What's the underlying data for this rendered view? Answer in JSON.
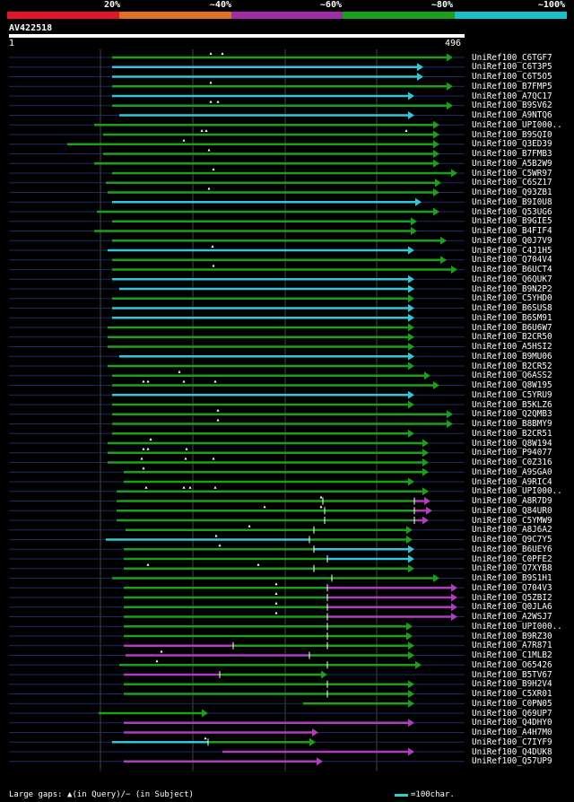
{
  "identity_scale": [
    {
      "label": "20%",
      "color": "#e0142a"
    },
    {
      "label": "~40%",
      "color": "#e07020"
    },
    {
      "label": "~60%",
      "color": "#a02ca8"
    },
    {
      "label": "~80%",
      "color": "#1aa01a"
    },
    {
      "label": "~100%",
      "color": "#18c0c8"
    }
  ],
  "colors": {
    "green": "#1aa01a",
    "cyan": "#30c8d8",
    "magenta": "#b03cc0",
    "gap": "#1c2a6a",
    "grid": "#444444"
  },
  "query": {
    "name": "AV422518",
    "start": "1",
    "end": "496",
    "length": 496
  },
  "footer": {
    "gaps": "Large gaps: ▲(in Query)/− (in Subject)",
    "legend": "=100char."
  },
  "hits": [
    {
      "name": "UniRef100_C6TGF7",
      "segs": [
        [
          125,
          505,
          "green"
        ]
      ],
      "marks": [
        235,
        248
      ]
    },
    {
      "name": "UniRef100_C6T3P5",
      "segs": [
        [
          125,
          472,
          "cyan"
        ]
      ],
      "marks": []
    },
    {
      "name": "UniRef100_C6T5O5",
      "segs": [
        [
          125,
          472,
          "cyan"
        ]
      ],
      "marks": []
    },
    {
      "name": "UniRef100_B7FMP5",
      "segs": [
        [
          125,
          505,
          "green"
        ]
      ],
      "marks": [
        235
      ]
    },
    {
      "name": "UniRef100_A7QC17",
      "segs": [
        [
          125,
          462,
          "cyan"
        ]
      ],
      "marks": []
    },
    {
      "name": "UniRef100_B9SV62",
      "segs": [
        [
          125,
          505,
          "green"
        ]
      ],
      "marks": [
        235,
        243
      ]
    },
    {
      "name": "UniRef100_A9NTQ6",
      "segs": [
        [
          133,
          462,
          "cyan"
        ]
      ],
      "marks": []
    },
    {
      "name": "UniRef100_UPI000..",
      "segs": [
        [
          105,
          490,
          "green"
        ]
      ],
      "marks": []
    },
    {
      "name": "UniRef100_B9SQI0",
      "segs": [
        [
          115,
          490,
          "green"
        ]
      ],
      "marks": [
        225,
        230,
        453
      ]
    },
    {
      "name": "UniRef100_Q3ED39",
      "segs": [
        [
          75,
          490,
          "green"
        ]
      ],
      "marks": [
        205
      ]
    },
    {
      "name": "UniRef100_B7FMB3",
      "segs": [
        [
          115,
          490,
          "green"
        ]
      ],
      "marks": [
        233
      ]
    },
    {
      "name": "UniRef100_A5B2W9",
      "segs": [
        [
          105,
          490,
          "green"
        ]
      ],
      "marks": []
    },
    {
      "name": "UniRef100_C5WR97",
      "segs": [
        [
          125,
          510,
          "green"
        ]
      ],
      "marks": [
        238
      ]
    },
    {
      "name": "UniRef100_C6SZ17",
      "segs": [
        [
          118,
          492,
          "green"
        ]
      ],
      "marks": []
    },
    {
      "name": "UniRef100_Q93ZB1",
      "segs": [
        [
          120,
          490,
          "green"
        ]
      ],
      "marks": [
        233
      ]
    },
    {
      "name": "UniRef100_B9I0U8",
      "segs": [
        [
          125,
          470,
          "cyan"
        ]
      ],
      "marks": []
    },
    {
      "name": "UniRef100_Q53UG6",
      "segs": [
        [
          108,
          490,
          "green"
        ]
      ],
      "marks": []
    },
    {
      "name": "UniRef100_B9GIE5",
      "segs": [
        [
          125,
          465,
          "green"
        ]
      ],
      "marks": []
    },
    {
      "name": "UniRef100_B4FIF4",
      "segs": [
        [
          105,
          465,
          "green"
        ]
      ],
      "marks": []
    },
    {
      "name": "UniRef100_Q0J7V9",
      "segs": [
        [
          125,
          498,
          "green"
        ]
      ],
      "marks": []
    },
    {
      "name": "UniRef100_C4J1H5",
      "segs": [
        [
          120,
          462,
          "cyan"
        ]
      ],
      "marks": [
        237
      ]
    },
    {
      "name": "UniRef100_Q704V4",
      "segs": [
        [
          125,
          498,
          "green"
        ]
      ],
      "marks": []
    },
    {
      "name": "UniRef100_B6UCT4",
      "segs": [
        [
          125,
          510,
          "green"
        ]
      ],
      "marks": [
        238
      ]
    },
    {
      "name": "UniRef100_Q6QUK7",
      "segs": [
        [
          125,
          462,
          "cyan"
        ]
      ],
      "marks": []
    },
    {
      "name": "UniRef100_B9N2P2",
      "segs": [
        [
          133,
          462,
          "cyan"
        ]
      ],
      "marks": []
    },
    {
      "name": "UniRef100_C5YHD0",
      "segs": [
        [
          125,
          462,
          "green"
        ]
      ],
      "marks": []
    },
    {
      "name": "UniRef100_B6SUS8",
      "segs": [
        [
          125,
          462,
          "cyan"
        ]
      ],
      "marks": []
    },
    {
      "name": "UniRef100_B6SM91",
      "segs": [
        [
          125,
          462,
          "cyan"
        ]
      ],
      "marks": []
    },
    {
      "name": "UniRef100_B6U6W7",
      "segs": [
        [
          120,
          462,
          "green"
        ]
      ],
      "marks": []
    },
    {
      "name": "UniRef100_B2CR50",
      "segs": [
        [
          120,
          462,
          "green"
        ]
      ],
      "marks": []
    },
    {
      "name": "UniRef100_A5HSI2",
      "segs": [
        [
          120,
          462,
          "green"
        ]
      ],
      "marks": []
    },
    {
      "name": "UniRef100_B9MU06",
      "segs": [
        [
          133,
          462,
          "cyan"
        ]
      ],
      "marks": []
    },
    {
      "name": "UniRef100_B2CR52",
      "segs": [
        [
          120,
          462,
          "green"
        ]
      ],
      "marks": []
    },
    {
      "name": "UniRef100_Q6ASS2",
      "segs": [
        [
          125,
          480,
          "green"
        ]
      ],
      "marks": [
        200
      ]
    },
    {
      "name": "UniRef100_Q8W195",
      "segs": [
        [
          125,
          490,
          "green"
        ]
      ],
      "marks": [
        160,
        165,
        205,
        240
      ]
    },
    {
      "name": "UniRef100_C5YRU9",
      "segs": [
        [
          125,
          462,
          "cyan"
        ]
      ],
      "marks": []
    },
    {
      "name": "UniRef100_B5KLZ6",
      "segs": [
        [
          125,
          462,
          "green"
        ]
      ],
      "marks": []
    },
    {
      "name": "UniRef100_Q2QMB3",
      "segs": [
        [
          125,
          505,
          "green"
        ]
      ],
      "marks": [
        243
      ]
    },
    {
      "name": "UniRef100_B8BMY9",
      "segs": [
        [
          125,
          505,
          "green"
        ]
      ],
      "marks": [
        243
      ]
    },
    {
      "name": "UniRef100_B2CR51",
      "segs": [
        [
          125,
          462,
          "green"
        ]
      ],
      "marks": []
    },
    {
      "name": "UniRef100_Q8W194",
      "segs": [
        [
          120,
          478,
          "green"
        ]
      ],
      "marks": [
        168
      ]
    },
    {
      "name": "UniRef100_P94077",
      "segs": [
        [
          120,
          478,
          "green"
        ]
      ],
      "marks": [
        160,
        165,
        208
      ]
    },
    {
      "name": "UniRef100_C0Z316",
      "segs": [
        [
          120,
          478,
          "green"
        ]
      ],
      "marks": [
        158,
        207,
        238
      ]
    },
    {
      "name": "UniRef100_A9SGA0",
      "segs": [
        [
          138,
          478,
          "green"
        ]
      ],
      "marks": [
        160
      ]
    },
    {
      "name": "UniRef100_A9RIC4",
      "segs": [
        [
          138,
          462,
          "green"
        ]
      ],
      "marks": []
    },
    {
      "name": "UniRef100_UPI000..",
      "segs": [
        [
          130,
          478,
          "green"
        ]
      ],
      "marks": [
        163,
        205,
        212,
        240
      ]
    },
    {
      "name": "UniRef100_A8R7D9",
      "segs": [
        [
          130,
          360,
          "green"
        ],
        [
          360,
          462,
          "green"
        ],
        [
          462,
          480,
          "magenta"
        ]
      ],
      "marks": [
        358
      ]
    },
    {
      "name": "UniRef100_Q84UR0",
      "segs": [
        [
          130,
          362,
          "green"
        ],
        [
          362,
          462,
          "green"
        ],
        [
          462,
          482,
          "magenta"
        ]
      ],
      "marks": [
        295,
        358
      ]
    },
    {
      "name": "UniRef100_C5YMW9",
      "segs": [
        [
          130,
          362,
          "green"
        ],
        [
          362,
          462,
          "green"
        ],
        [
          462,
          478,
          "magenta"
        ]
      ],
      "marks": []
    },
    {
      "name": "UniRef100_A8J6A2",
      "segs": [
        [
          140,
          350,
          "green"
        ],
        [
          350,
          460,
          "green"
        ]
      ],
      "marks": [
        278
      ]
    },
    {
      "name": "UniRef100_Q9C7Y5",
      "segs": [
        [
          118,
          345,
          "cyan"
        ],
        [
          345,
          460,
          "green"
        ]
      ],
      "marks": [
        241
      ]
    },
    {
      "name": "UniRef100_B6UEY6",
      "segs": [
        [
          138,
          350,
          "green"
        ],
        [
          350,
          462,
          "cyan"
        ]
      ],
      "marks": [
        245
      ]
    },
    {
      "name": "UniRef100_C0PFE2",
      "segs": [
        [
          138,
          365,
          "green"
        ],
        [
          365,
          462,
          "cyan"
        ]
      ],
      "marks": []
    },
    {
      "name": "UniRef100_Q7XYB8",
      "segs": [
        [
          138,
          350,
          "green"
        ],
        [
          350,
          462,
          "green"
        ]
      ],
      "marks": [
        165,
        288
      ]
    },
    {
      "name": "UniRef100_B9S1H1",
      "segs": [
        [
          125,
          370,
          "green"
        ],
        [
          370,
          490,
          "green"
        ]
      ],
      "marks": []
    },
    {
      "name": "UniRef100_Q704V3",
      "segs": [
        [
          138,
          365,
          "green"
        ],
        [
          365,
          510,
          "magenta"
        ]
      ],
      "marks": [
        308
      ]
    },
    {
      "name": "UniRef100_Q5ZBI2",
      "segs": [
        [
          138,
          365,
          "green"
        ],
        [
          365,
          510,
          "magenta"
        ]
      ],
      "marks": [
        308
      ]
    },
    {
      "name": "UniRef100_Q0JLA6",
      "segs": [
        [
          138,
          365,
          "green"
        ],
        [
          365,
          510,
          "magenta"
        ]
      ],
      "marks": [
        308
      ]
    },
    {
      "name": "UniRef100_A2WSJ7",
      "segs": [
        [
          138,
          365,
          "green"
        ],
        [
          365,
          510,
          "magenta"
        ]
      ],
      "marks": [
        308
      ]
    },
    {
      "name": "UniRef100_UPI000..",
      "segs": [
        [
          138,
          365,
          "green"
        ],
        [
          365,
          460,
          "green"
        ]
      ],
      "marks": []
    },
    {
      "name": "UniRef100_B9RZ30",
      "segs": [
        [
          138,
          365,
          "green"
        ],
        [
          365,
          460,
          "green"
        ]
      ],
      "marks": []
    },
    {
      "name": "UniRef100_A7R871",
      "segs": [
        [
          138,
          260,
          "magenta"
        ],
        [
          260,
          365,
          "green"
        ],
        [
          365,
          462,
          "green"
        ]
      ],
      "marks": []
    },
    {
      "name": "UniRef100_C1MLB2",
      "segs": [
        [
          140,
          345,
          "magenta"
        ],
        [
          345,
          462,
          "green"
        ]
      ],
      "marks": [
        180
      ]
    },
    {
      "name": "UniRef100_O65426",
      "segs": [
        [
          133,
          365,
          "green"
        ],
        [
          365,
          470,
          "green"
        ]
      ],
      "marks": [
        175
      ]
    },
    {
      "name": "UniRef100_B5TV67",
      "segs": [
        [
          138,
          245,
          "magenta"
        ],
        [
          245,
          365,
          "green"
        ]
      ],
      "marks": []
    },
    {
      "name": "UniRef100_B9H2V4",
      "segs": [
        [
          138,
          365,
          "green"
        ],
        [
          365,
          462,
          "green"
        ]
      ],
      "marks": []
    },
    {
      "name": "UniRef100_C5XR01",
      "segs": [
        [
          138,
          365,
          "green"
        ],
        [
          365,
          462,
          "green"
        ]
      ],
      "marks": []
    },
    {
      "name": "UniRef100_C0PN05",
      "segs": [
        [
          338,
          462,
          "green"
        ]
      ],
      "marks": []
    },
    {
      "name": "UniRef100_Q69UP7",
      "segs": [
        [
          110,
          232,
          "green"
        ]
      ],
      "marks": []
    },
    {
      "name": "UniRef100_Q4DHY0",
      "segs": [
        [
          138,
          462,
          "magenta"
        ]
      ],
      "marks": []
    },
    {
      "name": "UniRef100_A4H7M0",
      "segs": [
        [
          138,
          355,
          "magenta"
        ]
      ],
      "marks": []
    },
    {
      "name": "UniRef100_C7IYF9",
      "segs": [
        [
          125,
          232,
          "cyan"
        ],
        [
          232,
          352,
          "green"
        ]
      ],
      "marks": [
        229
      ]
    },
    {
      "name": "UniRef100_Q4DUK8",
      "segs": [
        [
          248,
          462,
          "magenta"
        ]
      ],
      "marks": []
    },
    {
      "name": "UniRef100_Q57UP9",
      "segs": [
        [
          138,
          360,
          "magenta"
        ]
      ],
      "marks": []
    }
  ]
}
